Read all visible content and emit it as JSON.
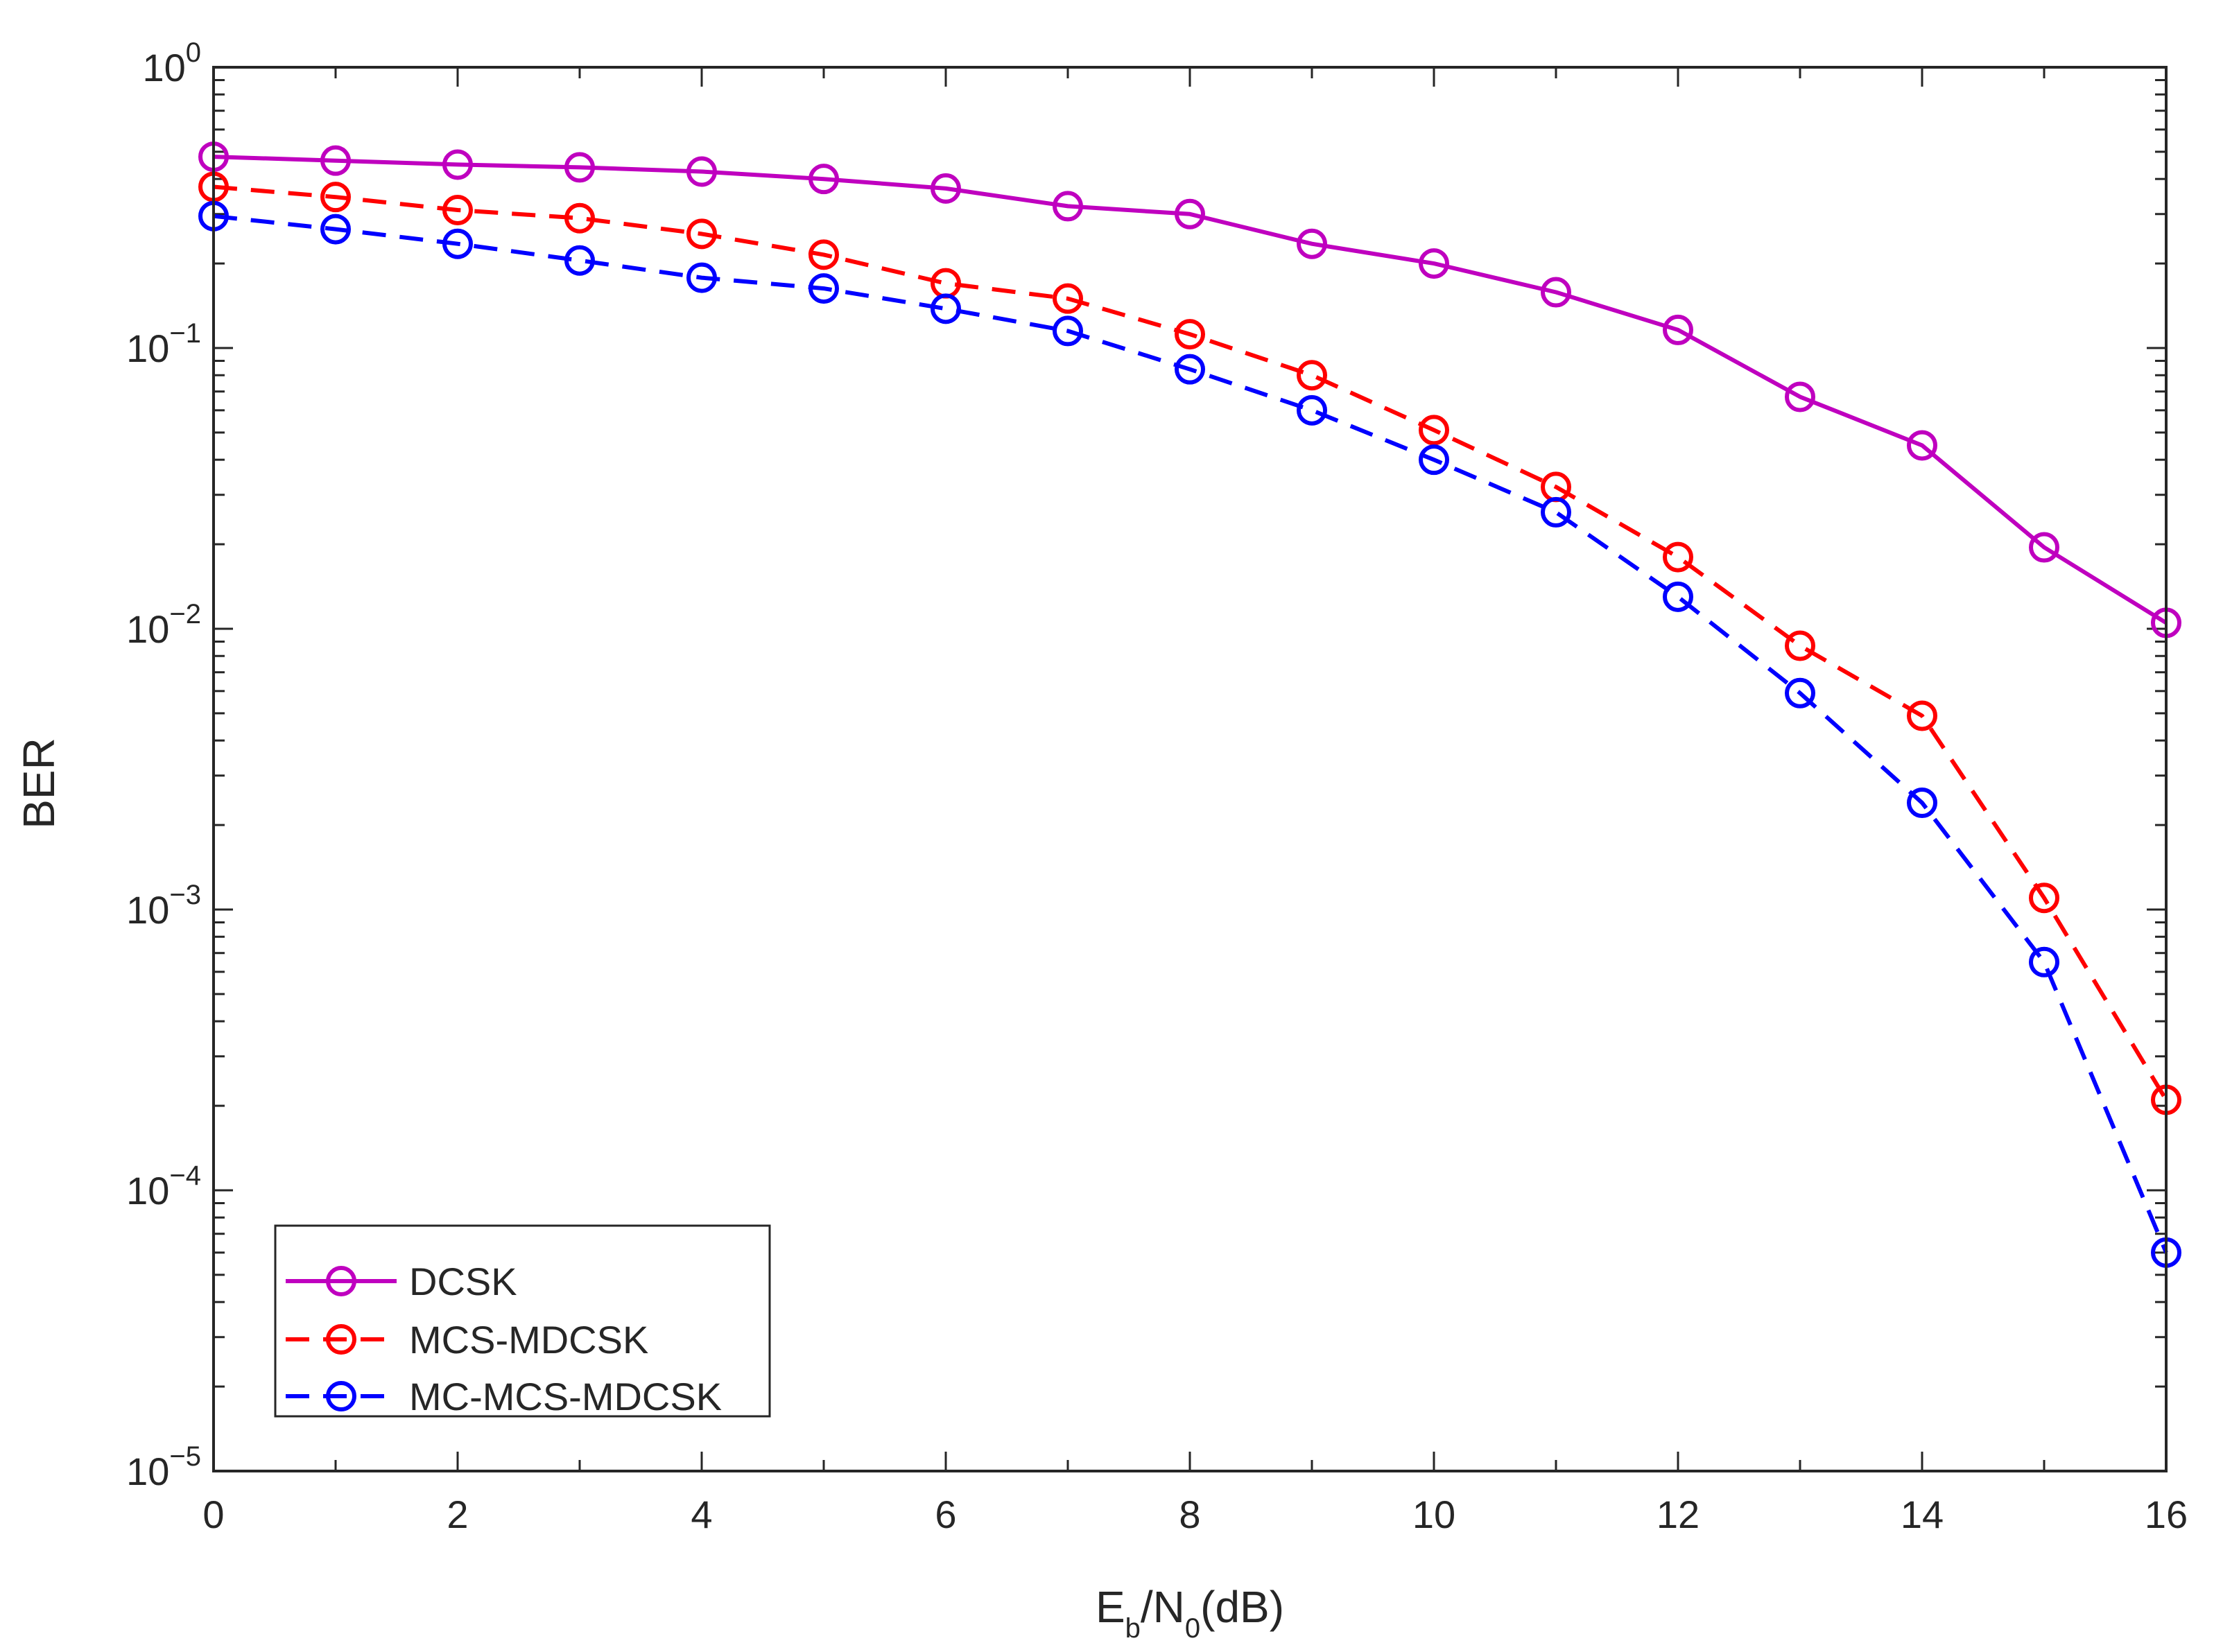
{
  "chart_data": {
    "type": "line",
    "title": "",
    "xlabel": {
      "base": "E",
      "sub1": "b",
      "mid": "/N",
      "sub2": "0",
      "tail": "(dB)"
    },
    "ylabel": "BER",
    "xlim": [
      0,
      16
    ],
    "ylim": [
      1e-05,
      1
    ],
    "yscale": "log",
    "grid": false,
    "x_ticks": [
      "0",
      "2",
      "4",
      "6",
      "8",
      "10",
      "12",
      "14",
      "16"
    ],
    "x_tick_values": [
      0,
      2,
      4,
      6,
      8,
      10,
      12,
      14,
      16
    ],
    "y_ticks": [
      {
        "base": "10",
        "exp": "0",
        "value": 1
      },
      {
        "base": "10",
        "exp": "−1",
        "value": 0.1
      },
      {
        "base": "10",
        "exp": "−2",
        "value": 0.01
      },
      {
        "base": "10",
        "exp": "−3",
        "value": 0.001
      },
      {
        "base": "10",
        "exp": "−4",
        "value": 0.0001
      },
      {
        "base": "10",
        "exp": "−5",
        "value": 1e-05
      }
    ],
    "legend_position": "bottom-left",
    "x": [
      0,
      1,
      2,
      3,
      4,
      5,
      6,
      7,
      8,
      9,
      10,
      11,
      12,
      13,
      14,
      15,
      16
    ],
    "series": [
      {
        "name": "DCSK",
        "color": "#BF00BF",
        "dashed": false,
        "marker": "circle",
        "values": [
          0.48,
          0.465,
          0.45,
          0.44,
          0.425,
          0.4,
          0.37,
          0.32,
          0.3,
          0.235,
          0.2,
          0.158,
          0.116,
          0.067,
          0.045,
          0.0195,
          0.0105
        ]
      },
      {
        "name": "MCS-MDCSK",
        "color": "#FF0000",
        "dashed": true,
        "marker": "circle",
        "values": [
          0.375,
          0.345,
          0.31,
          0.29,
          0.255,
          0.215,
          0.17,
          0.15,
          0.112,
          0.08,
          0.051,
          0.032,
          0.018,
          0.0087,
          0.0049,
          0.0011,
          0.00021
        ]
      },
      {
        "name": "MC-MCS-MDCSK",
        "color": "#0000FF",
        "dashed": true,
        "marker": "circle",
        "values": [
          0.295,
          0.265,
          0.235,
          0.205,
          0.178,
          0.163,
          0.138,
          0.115,
          0.084,
          0.06,
          0.04,
          0.026,
          0.013,
          0.0059,
          0.0024,
          0.00065,
          6e-05
        ]
      }
    ]
  }
}
